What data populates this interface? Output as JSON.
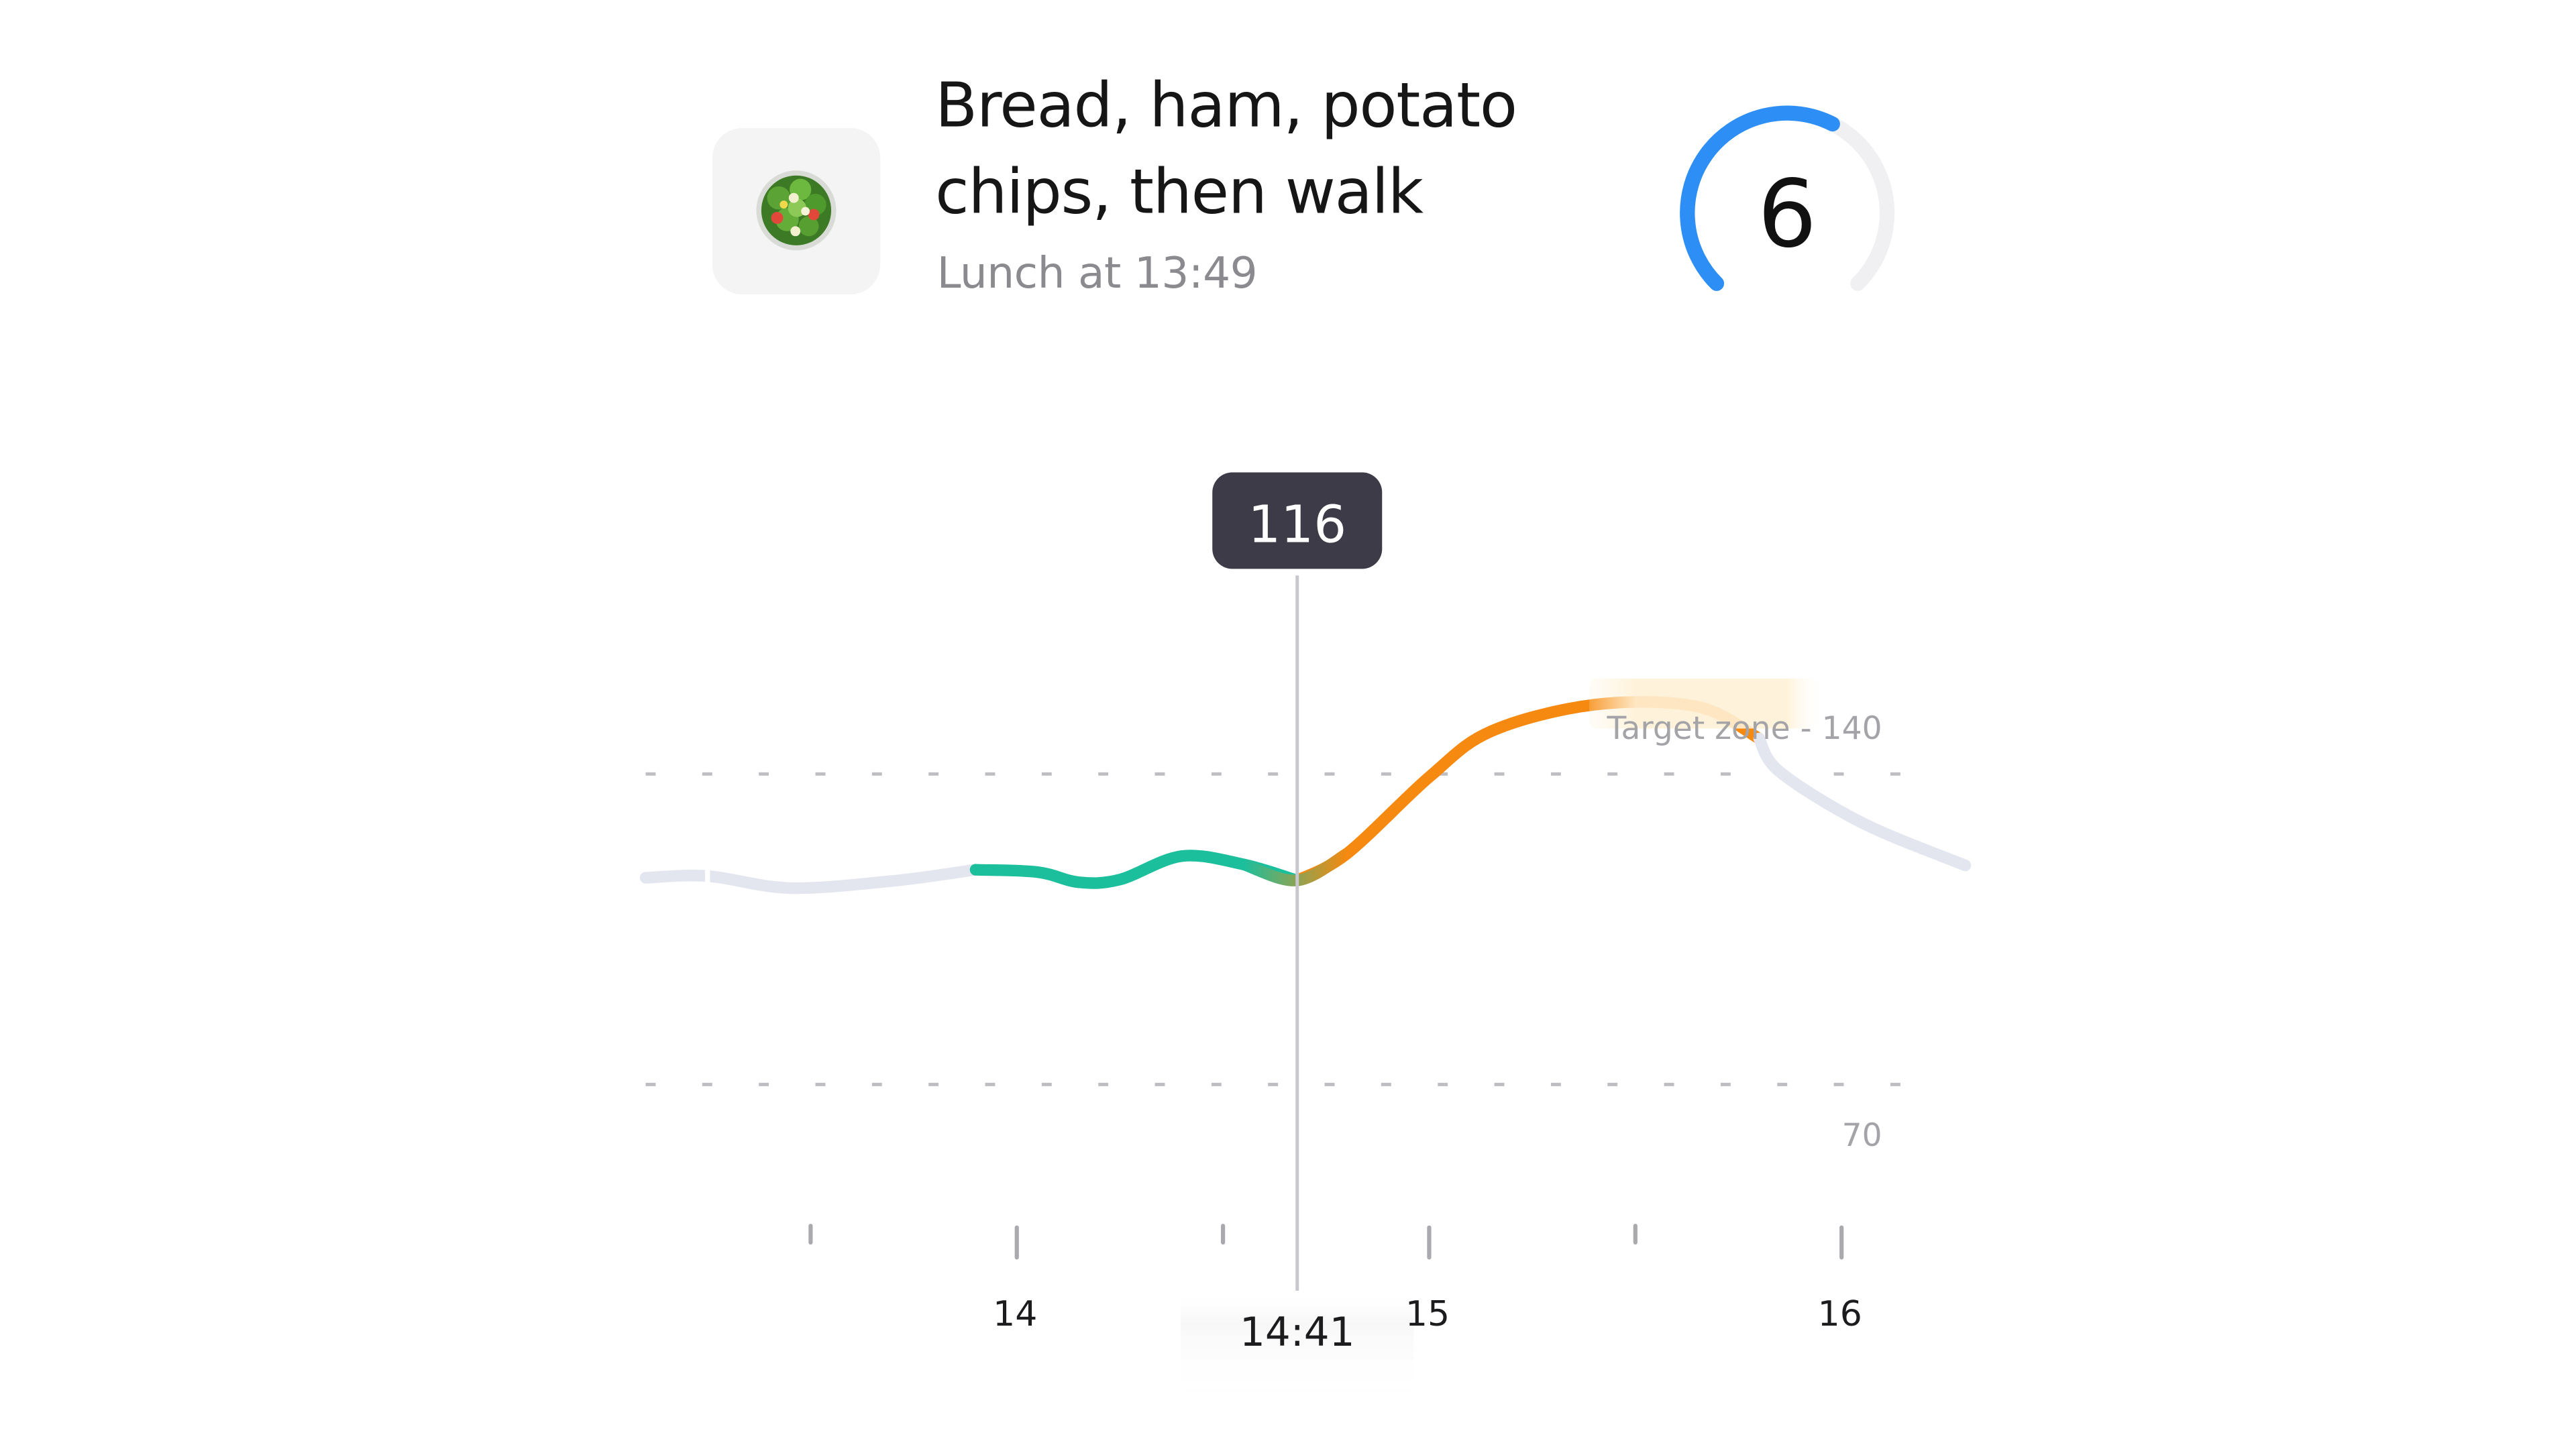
{
  "meal": {
    "title": "Bread, ham, potato chips, then walk",
    "subtitle": "Lunch at 13:49",
    "icon": "salad-bowl-icon"
  },
  "score": {
    "value": "6",
    "max": 10,
    "arc_color": "#2d8ff5",
    "track_color": "#f0f0f2"
  },
  "chart_data": {
    "type": "line",
    "x_unit": "hour of day",
    "xlim": [
      13.1,
      16.3
    ],
    "ylim": [
      52,
      172
    ],
    "x_tick_labels": [
      {
        "x": 14,
        "label": "14"
      },
      {
        "x": 15,
        "label": "15"
      },
      {
        "x": 16,
        "label": "16"
      }
    ],
    "x_minor_ticks": [
      13.5,
      14.5,
      15.5
    ],
    "reference_lines": [
      {
        "y": 140,
        "label": "Target zone - 140"
      },
      {
        "y": 70,
        "label": "70"
      }
    ],
    "cursor": {
      "x": 14.68,
      "time_label": "14:41",
      "value_label": "116"
    },
    "series": [
      {
        "segment": "before",
        "color": "#e3e5ef",
        "points": [
          [
            13.1,
            116.6
          ],
          [
            13.25,
            117
          ],
          [
            13.45,
            114.3
          ],
          [
            13.7,
            115.9
          ],
          [
            13.9,
            118.4
          ]
        ]
      },
      {
        "segment": "in-range",
        "color": "#1bbf9c",
        "points": [
          [
            13.9,
            118.4
          ],
          [
            14.05,
            117.9
          ],
          [
            14.15,
            115.6
          ],
          [
            14.25,
            116.2
          ],
          [
            14.4,
            121.5
          ],
          [
            14.55,
            119.6
          ],
          [
            14.68,
            116
          ]
        ]
      },
      {
        "segment": "high",
        "color": "#f6890f",
        "points": [
          [
            14.68,
            116
          ],
          [
            14.8,
            122
          ],
          [
            15.0,
            139.3
          ],
          [
            15.15,
            149.6
          ],
          [
            15.4,
            155.6
          ],
          [
            15.65,
            155.2
          ],
          [
            15.8,
            148
          ]
        ]
      },
      {
        "segment": "after",
        "color": "#e3e5ef",
        "points": [
          [
            15.8,
            148
          ],
          [
            15.85,
            140.5
          ],
          [
            16.05,
            129
          ],
          [
            16.3,
            119.4
          ]
        ]
      }
    ]
  }
}
